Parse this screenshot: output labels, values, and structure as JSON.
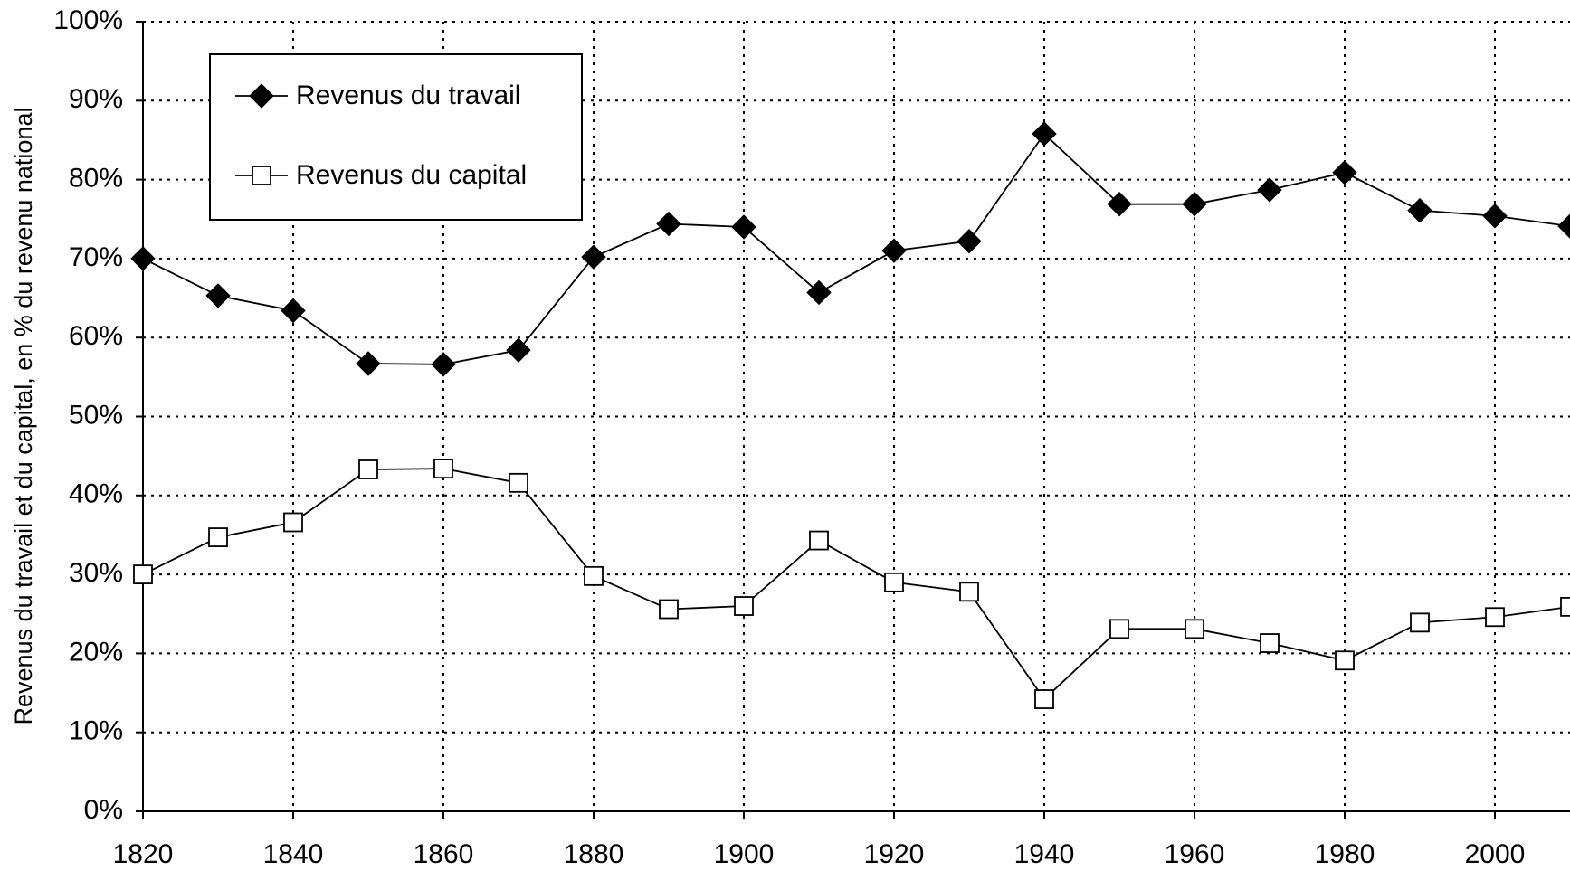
{
  "chart_data": {
    "type": "line",
    "y_label": "Revenus du travail et du capital, en % du revenu national",
    "x": [
      1820,
      1830,
      1840,
      1850,
      1860,
      1870,
      1880,
      1890,
      1900,
      1910,
      1920,
      1930,
      1940,
      1950,
      1960,
      1970,
      1980,
      1990,
      2000,
      2010
    ],
    "series": [
      {
        "name": "Revenus du travail",
        "color": "#000000",
        "marker": "diamond",
        "values": [
          70,
          65.3,
          63.4,
          56.7,
          56.6,
          58.4,
          70.2,
          74.4,
          74,
          65.7,
          71,
          72.2,
          85.8,
          76.9,
          76.9,
          78.7,
          80.9,
          76.1,
          75.4,
          74.1
        ]
      },
      {
        "name": "Revenus du capital",
        "color": "#000000",
        "marker": "square",
        "values": [
          30,
          34.7,
          36.6,
          43.3,
          43.4,
          41.6,
          29.8,
          25.6,
          26,
          34.3,
          29,
          27.8,
          14.2,
          23.1,
          23.1,
          21.3,
          19.1,
          23.9,
          24.6,
          25.9
        ]
      }
    ],
    "xlim": [
      1820,
      2010
    ],
    "xticks": [
      1820,
      1840,
      1860,
      1880,
      1900,
      1920,
      1940,
      1960,
      1980,
      2000
    ],
    "ylim": [
      0,
      100
    ],
    "yticks": [
      {
        "value": 0,
        "label": "0%"
      },
      {
        "value": 10,
        "label": "10%"
      },
      {
        "value": 20,
        "label": "20%"
      },
      {
        "value": 30,
        "label": "30%"
      },
      {
        "value": 40,
        "label": "40%"
      },
      {
        "value": 50,
        "label": "50%"
      },
      {
        "value": 60,
        "label": "60%"
      },
      {
        "value": 70,
        "label": "70%"
      },
      {
        "value": 80,
        "label": "80%"
      },
      {
        "value": 90,
        "label": "90%"
      },
      {
        "value": 100,
        "label": "100%"
      }
    ],
    "grid": true,
    "legend": "upper left"
  }
}
